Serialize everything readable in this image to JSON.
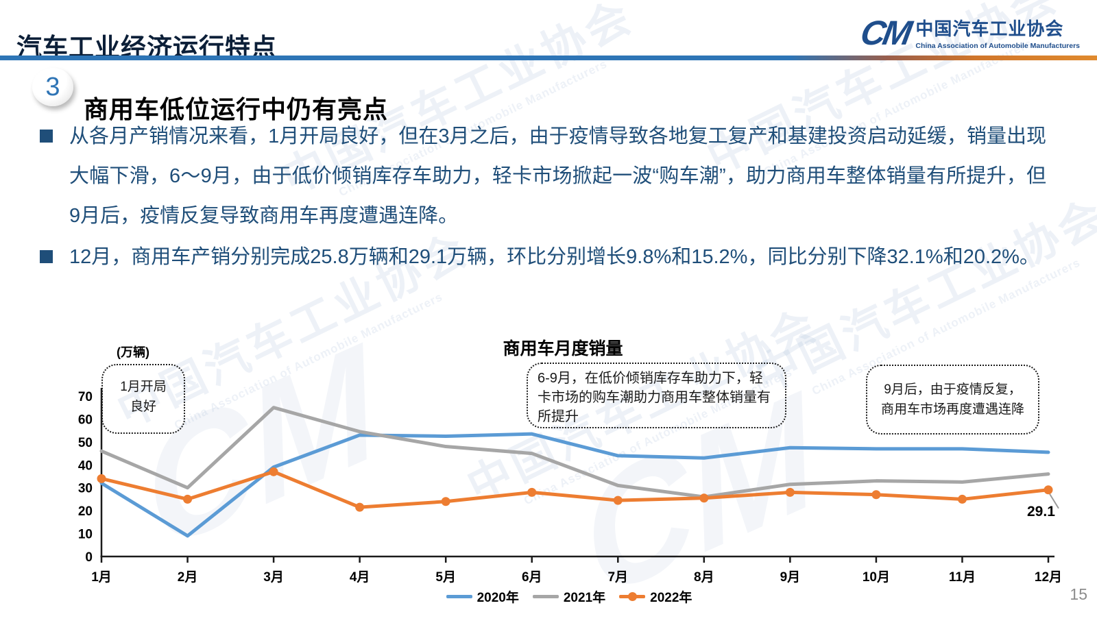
{
  "slide": {
    "title": "汽车工业经济运行特点",
    "section_number": "3",
    "section_heading": "商用车低位运行中仍有亮点",
    "bullets": [
      "从各月产销情况来看，1月开局良好，但在3月之后，由于疫情导致各地复工复产和基建投资启动延缓，销量出现大幅下滑，6～9月，由于低价倾销库存车助力，轻卡市场掀起一波“购车潮”，助力商用车整体销量有所提升，但9月后，疫情反复导致商用车再度遭遇连降。",
      "12月，商用车产销分别完成25.8万辆和29.1万辆，环比分别增长9.8%和15.2%，同比分别下降32.1%和20.2%。"
    ],
    "page_number": "15"
  },
  "logo": {
    "mark": "CM",
    "name_zh": "中国汽车工业协会",
    "name_en": "China Association of Automobile Manufacturers"
  },
  "watermark": {
    "zh": "中国汽车工业协会",
    "en": "China Association of Automobile Manufacturers",
    "glyph": "CM"
  },
  "chart_data": {
    "type": "line",
    "title": "商用车月度销量",
    "unit_label": "(万辆)",
    "categories": [
      "1月",
      "2月",
      "3月",
      "4月",
      "5月",
      "6月",
      "7月",
      "8月",
      "9月",
      "10月",
      "11月",
      "12月"
    ],
    "series": [
      {
        "name": "2020年",
        "color": "#5B9BD5",
        "marker": false,
        "values": [
          32,
          9,
          39,
          53,
          52.5,
          53.5,
          44,
          43,
          47.5,
          47,
          47,
          45.5
        ]
      },
      {
        "name": "2021年",
        "color": "#A6A6A6",
        "marker": false,
        "values": [
          46,
          30,
          65,
          54.5,
          48,
          45,
          31,
          26,
          31.5,
          33,
          32.5,
          36
        ]
      },
      {
        "name": "2022年",
        "color": "#ED7D31",
        "marker": true,
        "values": [
          34,
          25,
          37,
          21.5,
          24,
          28,
          24.5,
          25.5,
          28,
          27,
          25,
          29.1
        ]
      }
    ],
    "ylim": [
      0,
      70
    ],
    "yticks": [
      0,
      10,
      20,
      30,
      40,
      50,
      60,
      70
    ],
    "grid": false,
    "legend_position": "bottom",
    "end_label": {
      "series": "2022年",
      "text": "29.1"
    }
  },
  "annotations": [
    {
      "text": "1月开局\n良好"
    },
    {
      "text": "6-9月，在低价倾销库存车助力下，轻卡市场的购车潮助力商用车整体销量有所提升"
    },
    {
      "text": "9月后，由于疫情反复，\n商用车市场再度遭遇连降"
    }
  ],
  "colors": {
    "divider_blue": "#2E75B6",
    "divider_orange": "#E08A2E",
    "body_text": "#1F4E79",
    "badge_number": "#2E74B5",
    "axis": "#1a1a1a",
    "page_number": "#8c8c8c"
  }
}
